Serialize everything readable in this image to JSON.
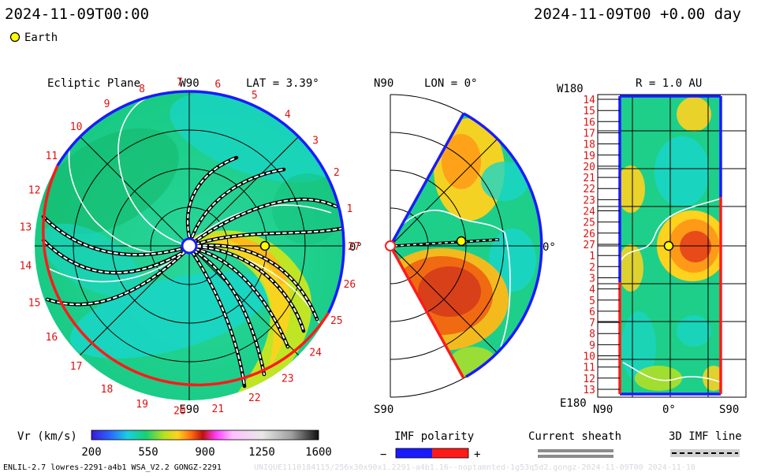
{
  "header": {
    "time_left": "2024-11-09T00:00",
    "time_right": "2024-11-09T00 +0.00 day",
    "earth_legend": "Earth"
  },
  "ecliptic": {
    "title": "Ecliptic Plane",
    "lat": "LAT = 3.39°",
    "top_label": "W90",
    "bottom_label": "E90",
    "right_label": "0°",
    "ticks": [
      "1",
      "2",
      "3",
      "4",
      "5",
      "6",
      "7",
      "8",
      "9",
      "10",
      "11",
      "12",
      "13",
      "14",
      "15",
      "16",
      "17",
      "18",
      "19",
      "20",
      "21",
      "22",
      "23",
      "24",
      "25",
      "26",
      "27"
    ]
  },
  "meridional": {
    "lon": "LON = 0°",
    "top_label": "N90",
    "bottom_label": "S90",
    "right_label": "0°"
  },
  "radial": {
    "r_label": "R = 1.0 AU",
    "top_label": "W180",
    "bottom_label": "E180",
    "x_left": "N90",
    "x_mid": "0°",
    "x_right": "S90",
    "rows": [
      "14",
      "15",
      "16",
      "17",
      "18",
      "19",
      "20",
      "21",
      "22",
      "23",
      "24",
      "25",
      "26",
      "27",
      "1",
      "2",
      "3",
      "4",
      "5",
      "6",
      "7",
      "8",
      "9",
      "10",
      "11",
      "12",
      "13"
    ]
  },
  "colorbar": {
    "label": "Vr (km/s)",
    "ticks": [
      "200",
      "550",
      "900",
      "1250",
      "1600"
    ]
  },
  "legend": {
    "imf_polarity": "IMF polarity",
    "minus": "−",
    "plus": "+",
    "current_sheath": "Current sheath",
    "imf_line": "3D IMF line"
  },
  "footer": {
    "model": "ENLIL-2.7 lowres-2291-a4b1 WSA_V2.2 GONGZ-2291",
    "watermark": "UNIQUE1110184115/256x30x90x1.2291-a4b1.16--noptamnted-1g53q5d2.gongz-2024-11-09T00     2024-11-10"
  },
  "colors": {
    "background_speed": "#1ecf8a",
    "slow_wind": "#19d6c8",
    "fast_stream": "#ffd21e",
    "fast_core": "#e84a1a",
    "polarity_negative": "#1a1aff",
    "polarity_positive": "#ff1a1a",
    "earth": "#ffff00"
  }
}
